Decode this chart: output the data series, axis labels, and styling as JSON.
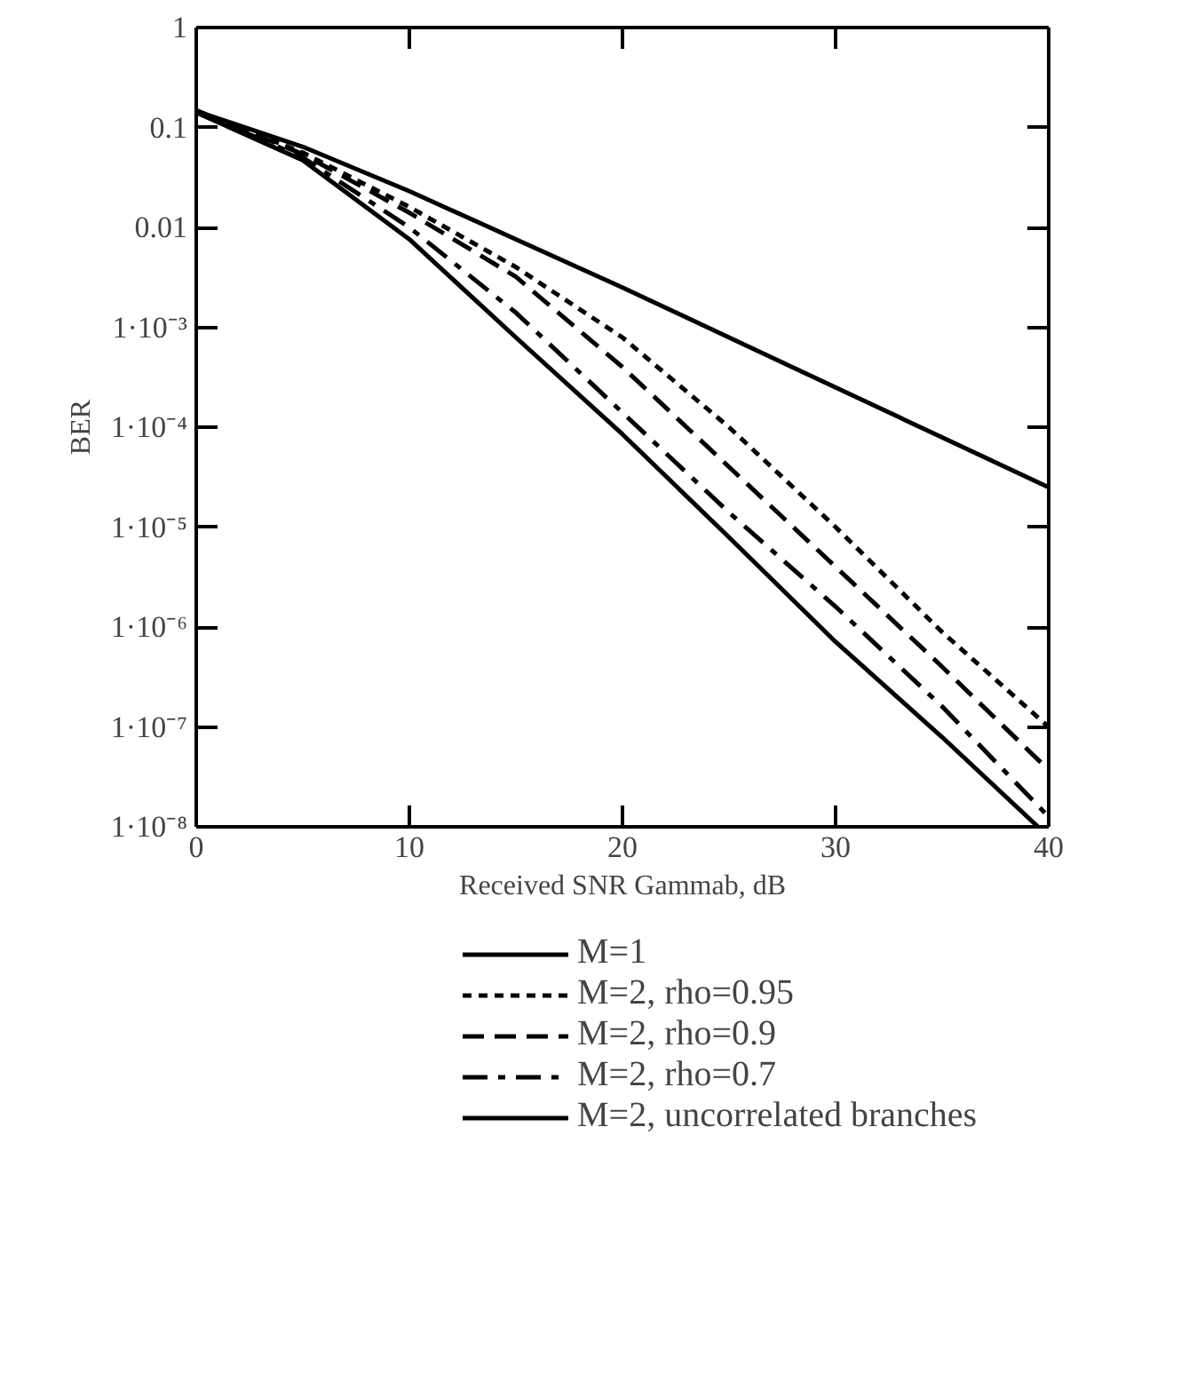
{
  "chart_data": {
    "type": "line",
    "xlabel": "Received SNR Gammab, dB",
    "ylabel": "BER",
    "log": "y",
    "x": [
      0,
      5,
      10,
      15,
      20,
      25,
      30,
      35,
      40
    ],
    "xlim": [
      0,
      40
    ],
    "xticks": [
      0,
      10,
      20,
      30,
      40
    ],
    "ylim": [
      1e-08,
      1
    ],
    "yticks": [
      {
        "value": 1e-08,
        "label": "1·10⁻⁸"
      },
      {
        "value": 1e-07,
        "label": "1·10⁻⁷"
      },
      {
        "value": 1e-06,
        "label": "1·10⁻⁶"
      },
      {
        "value": 1e-05,
        "label": "1·10⁻⁵"
      },
      {
        "value": 0.0001,
        "label": "1·10⁻⁴"
      },
      {
        "value": 0.001,
        "label": "1·10⁻³"
      },
      0.01,
      0.1,
      1
    ],
    "grid": false,
    "legend": "bottom",
    "marker": "none",
    "series": [
      {
        "name": "M=1",
        "color": "#000000",
        "line_style": "solid",
        "values": [
          0.146,
          0.064,
          0.023,
          0.0076,
          0.0025,
          0.00079,
          0.00025,
          7.9e-05,
          2.5e-05
        ]
      },
      {
        "name": "M=2, rho=0.95",
        "color": "#000000",
        "line_style": "dotted",
        "values": [
          0.148,
          0.056,
          0.016,
          0.004,
          0.00079,
          0.0001,
          1e-05,
          8.9e-07,
          1e-07
        ]
      },
      {
        "name": "M=2, rho=0.9",
        "color": "#000000",
        "line_style": "dashed",
        "values": [
          0.148,
          0.054,
          0.014,
          0.0032,
          0.0004,
          4e-05,
          4e-06,
          4e-07,
          3.7e-08
        ]
      },
      {
        "name": "M=2, rho=0.7",
        "color": "#000000",
        "line_style": "dashdot",
        "values": [
          0.145,
          0.05,
          0.01,
          0.0014,
          0.00014,
          1.4e-05,
          1.6e-06,
          1.6e-07,
          1.26e-08
        ]
      },
      {
        "name": "M=2, uncorrelated branches",
        "color": "#000000",
        "line_style": "solid",
        "x": [
          0,
          5,
          10,
          15,
          20,
          25,
          30,
          35,
          39.5
        ],
        "values": [
          0.141,
          0.047,
          0.0076,
          0.00079,
          8.5e-05,
          7.9e-06,
          7.1e-07,
          7.9e-08,
          1e-08
        ]
      }
    ]
  }
}
